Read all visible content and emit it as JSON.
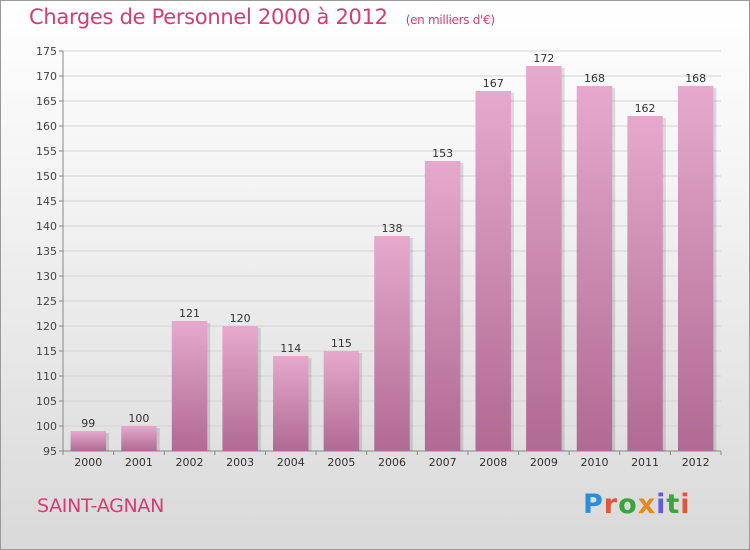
{
  "header": {
    "title": "Charges de Personnel 2000 à 2012",
    "unit": "(en milliers d'€)"
  },
  "footer": {
    "place": "SAINT-AGNAN",
    "logo": "Proxiti"
  },
  "colors": {
    "title": "#d63c74",
    "bar_light": "#e6a9cd",
    "bar_dark": "#b06a93",
    "logo_letters": [
      "#2a8fd6",
      "#e0573a",
      "#3aa63a",
      "#e58a1f",
      "#6b5bd1",
      "#3aa63a",
      "#e0573a"
    ]
  },
  "chart_data": {
    "type": "bar",
    "title": "Charges de Personnel 2000 à 2012",
    "subtitle": "(en milliers d'€)",
    "categories": [
      "2000",
      "2001",
      "2002",
      "2003",
      "2004",
      "2005",
      "2006",
      "2007",
      "2008",
      "2009",
      "2010",
      "2011",
      "2012"
    ],
    "values": [
      99,
      100,
      121,
      120,
      114,
      115,
      138,
      153,
      167,
      172,
      168,
      162,
      168
    ],
    "ylim": [
      95,
      175
    ],
    "yticks": [
      95,
      100,
      105,
      110,
      115,
      120,
      125,
      130,
      135,
      140,
      145,
      150,
      155,
      160,
      165,
      170,
      175
    ],
    "grid": true,
    "data_labels": true
  }
}
